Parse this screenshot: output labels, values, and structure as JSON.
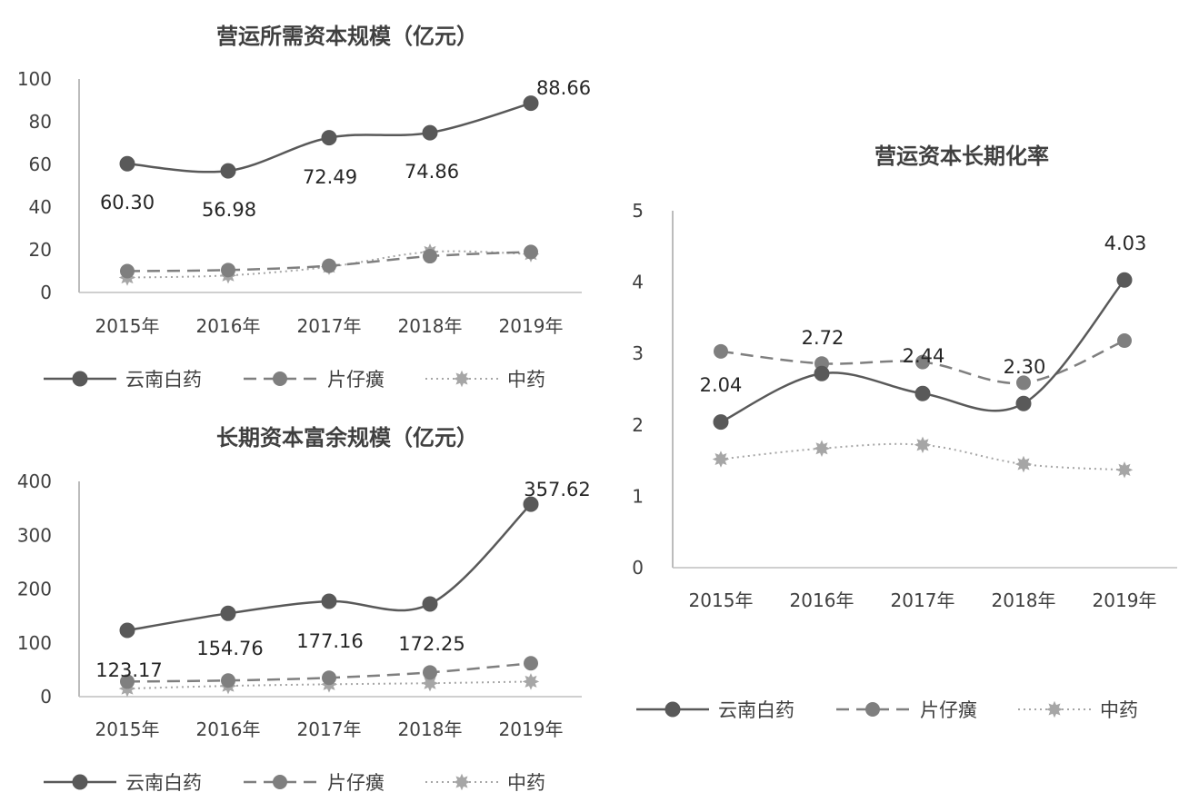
{
  "chart_data": [
    {
      "type": "line",
      "title": "营运所需资本规模（亿元）",
      "categories": [
        "2015年",
        "2016年",
        "2017年",
        "2018年",
        "2019年"
      ],
      "ylim": [
        0,
        100
      ],
      "yticks": [
        "0",
        "20",
        "40",
        "60",
        "80",
        "100"
      ],
      "grid": false,
      "legend_position": "bottom",
      "series": [
        {
          "name": "云南白药",
          "values": [
            60.3,
            56.98,
            72.49,
            74.86,
            88.66
          ],
          "labels": [
            "60.30",
            "56.98",
            "72.49",
            "74.86",
            "88.66"
          ],
          "style": "solid",
          "color": "#595959"
        },
        {
          "name": "片仔癀",
          "values": [
            10,
            10.5,
            12.5,
            17,
            19
          ],
          "style": "dashed",
          "color": "#7f7f7f"
        },
        {
          "name": "中药",
          "values": [
            7,
            8,
            12,
            19,
            18
          ],
          "style": "dotted",
          "color": "#a6a6a6"
        }
      ]
    },
    {
      "type": "line",
      "title": "长期资本富余规模（亿元）",
      "categories": [
        "2015年",
        "2016年",
        "2017年",
        "2018年",
        "2019年"
      ],
      "ylim": [
        0,
        400
      ],
      "yticks": [
        "0",
        "100",
        "200",
        "300",
        "400"
      ],
      "grid": false,
      "legend_position": "bottom",
      "series": [
        {
          "name": "云南白药",
          "values": [
            123.17,
            154.76,
            177.16,
            172.25,
            357.62
          ],
          "labels": [
            "123.17",
            "154.76",
            "177.16",
            "172.25",
            "357.62"
          ],
          "style": "solid",
          "color": "#595959"
        },
        {
          "name": "片仔癀",
          "values": [
            28,
            30,
            35,
            45,
            62
          ],
          "style": "dashed",
          "color": "#7f7f7f"
        },
        {
          "name": "中药",
          "values": [
            15,
            20,
            23,
            25,
            28
          ],
          "style": "dotted",
          "color": "#a6a6a6"
        }
      ]
    },
    {
      "type": "line",
      "title": "营运资本长期化率",
      "categories": [
        "2015年",
        "2016年",
        "2017年",
        "2018年",
        "2019年"
      ],
      "ylim": [
        0,
        5
      ],
      "yticks": [
        "0",
        "1",
        "2",
        "3",
        "4",
        "5"
      ],
      "grid": false,
      "legend_position": "bottom",
      "series": [
        {
          "name": "云南白药",
          "values": [
            2.04,
            2.72,
            2.44,
            2.3,
            4.03
          ],
          "labels": [
            "2.04",
            "2.72",
            "2.44",
            "2.30",
            "4.03"
          ],
          "style": "solid",
          "color": "#595959"
        },
        {
          "name": "片仔癀",
          "values": [
            3.03,
            2.86,
            2.88,
            2.59,
            3.18
          ],
          "style": "dashed",
          "color": "#7f7f7f"
        },
        {
          "name": "中药",
          "values": [
            1.52,
            1.67,
            1.72,
            1.45,
            1.37
          ],
          "style": "dotted",
          "color": "#a6a6a6"
        }
      ]
    }
  ]
}
